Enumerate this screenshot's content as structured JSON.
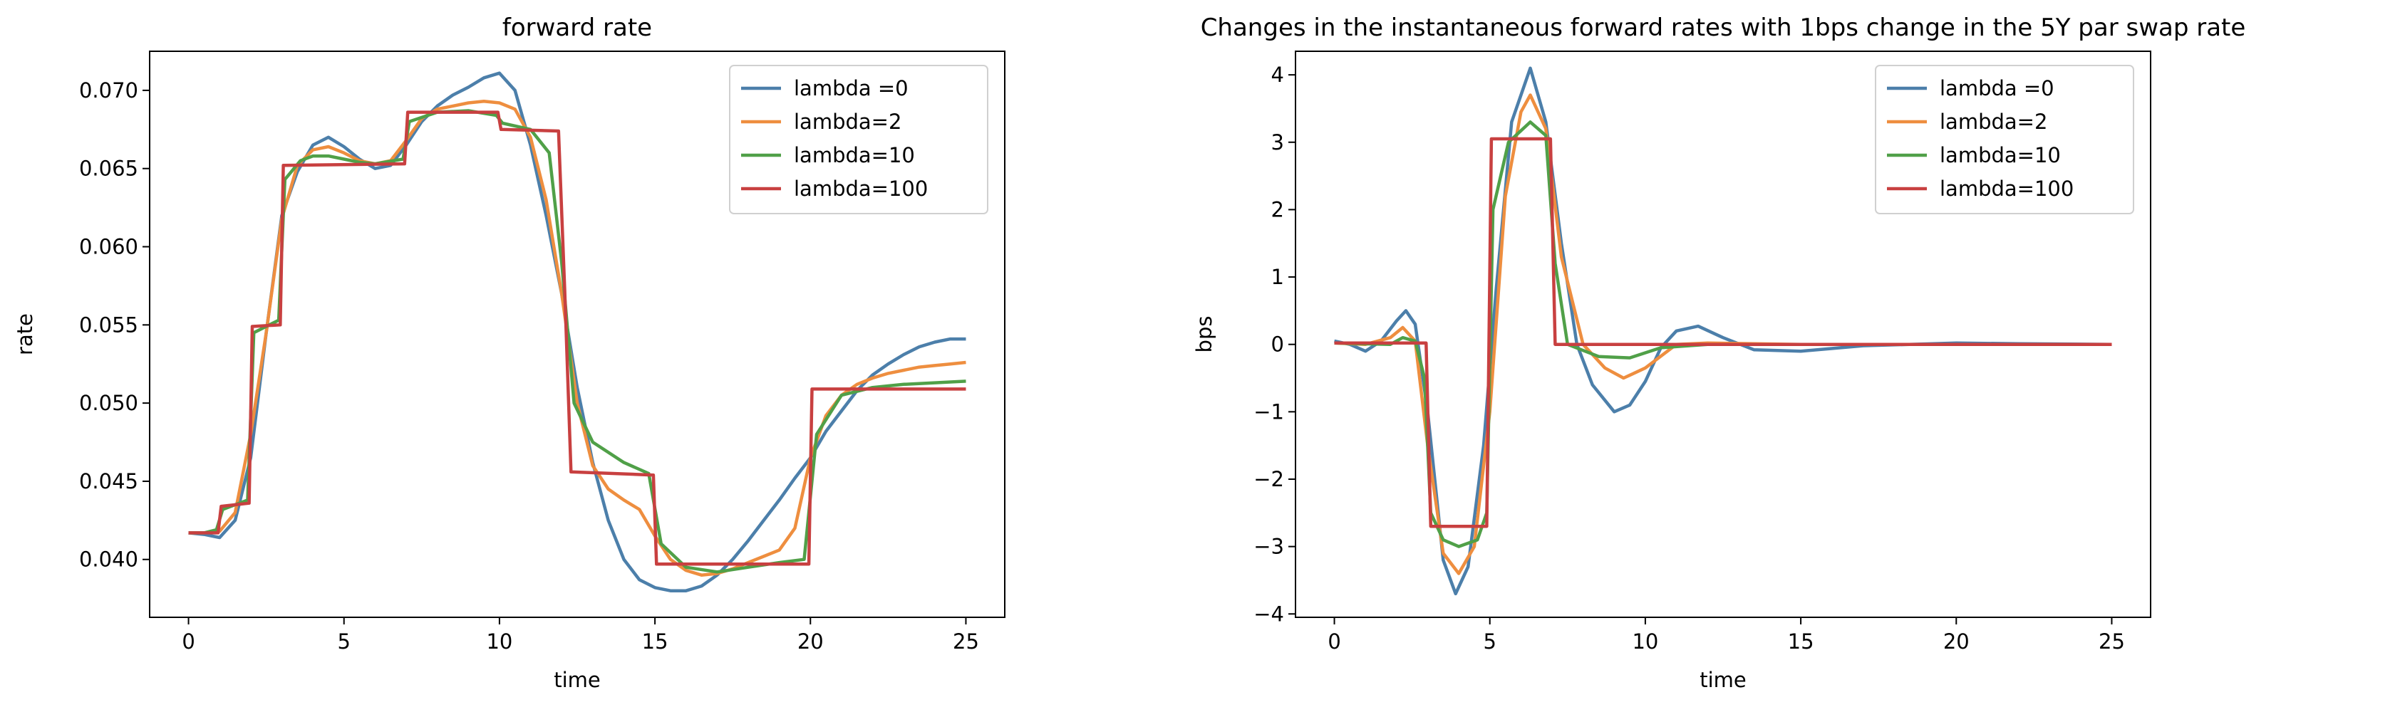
{
  "chart_data": [
    {
      "type": "line",
      "title": "forward rate",
      "xlabel": "time",
      "ylabel": "rate",
      "xlim": [
        -1.25,
        26.25
      ],
      "ylim": [
        0.0363,
        0.0725
      ],
      "xticks": [
        0,
        5,
        10,
        15,
        20,
        25
      ],
      "yticks": [
        0.04,
        0.045,
        0.05,
        0.055,
        0.06,
        0.065,
        0.07
      ],
      "ytick_decimals": 3,
      "legend": "top-right",
      "grid": false,
      "series": [
        {
          "name": "lambda =0",
          "color": "#4c7faa",
          "points": [
            [
              0,
              0.0417
            ],
            [
              0.5,
              0.0416
            ],
            [
              1,
              0.0414
            ],
            [
              1.5,
              0.0425
            ],
            [
              2,
              0.0465
            ],
            [
              2.5,
              0.0545
            ],
            [
              3,
              0.062
            ],
            [
              3.5,
              0.0648
            ],
            [
              4,
              0.0665
            ],
            [
              4.5,
              0.067
            ],
            [
              5,
              0.0664
            ],
            [
              5.5,
              0.0656
            ],
            [
              6,
              0.065
            ],
            [
              6.5,
              0.0652
            ],
            [
              7,
              0.0665
            ],
            [
              7.5,
              0.068
            ],
            [
              8,
              0.069
            ],
            [
              8.5,
              0.0697
            ],
            [
              9,
              0.0702
            ],
            [
              9.5,
              0.0708
            ],
            [
              10,
              0.0711
            ],
            [
              10.5,
              0.07
            ],
            [
              11,
              0.0665
            ],
            [
              11.5,
              0.062
            ],
            [
              12,
              0.057
            ],
            [
              12.5,
              0.051
            ],
            [
              13,
              0.0462
            ],
            [
              13.5,
              0.0425
            ],
            [
              14,
              0.04
            ],
            [
              14.5,
              0.0387
            ],
            [
              15,
              0.0382
            ],
            [
              15.5,
              0.038
            ],
            [
              16,
              0.038
            ],
            [
              16.5,
              0.0383
            ],
            [
              17,
              0.039
            ],
            [
              17.5,
              0.04
            ],
            [
              18,
              0.0412
            ],
            [
              18.5,
              0.0425
            ],
            [
              19,
              0.0438
            ],
            [
              19.5,
              0.0452
            ],
            [
              20,
              0.0465
            ],
            [
              20.5,
              0.0482
            ],
            [
              21,
              0.0495
            ],
            [
              21.5,
              0.0508
            ],
            [
              22,
              0.0518
            ],
            [
              22.5,
              0.0525
            ],
            [
              23,
              0.0531
            ],
            [
              23.5,
              0.0536
            ],
            [
              24,
              0.0539
            ],
            [
              24.5,
              0.0541
            ],
            [
              25,
              0.0541
            ]
          ]
        },
        {
          "name": "lambda=2",
          "color": "#ee8e3f",
          "points": [
            [
              0,
              0.0417
            ],
            [
              0.5,
              0.0417
            ],
            [
              1,
              0.0418
            ],
            [
              1.5,
              0.043
            ],
            [
              2,
              0.048
            ],
            [
              2.5,
              0.0545
            ],
            [
              3,
              0.0618
            ],
            [
              3.5,
              0.0652
            ],
            [
              4,
              0.0662
            ],
            [
              4.5,
              0.0664
            ],
            [
              5,
              0.066
            ],
            [
              5.5,
              0.0655
            ],
            [
              6,
              0.0653
            ],
            [
              6.5,
              0.0655
            ],
            [
              7,
              0.0668
            ],
            [
              7.5,
              0.0682
            ],
            [
              8,
              0.0688
            ],
            [
              8.5,
              0.069
            ],
            [
              9,
              0.0692
            ],
            [
              9.5,
              0.0693
            ],
            [
              10,
              0.0692
            ],
            [
              10.5,
              0.0688
            ],
            [
              11,
              0.067
            ],
            [
              11.5,
              0.063
            ],
            [
              12,
              0.057
            ],
            [
              12.5,
              0.05
            ],
            [
              13,
              0.046
            ],
            [
              13.5,
              0.0445
            ],
            [
              14,
              0.0438
            ],
            [
              14.5,
              0.0432
            ],
            [
              15,
              0.0415
            ],
            [
              15.5,
              0.04
            ],
            [
              16,
              0.0393
            ],
            [
              16.5,
              0.039
            ],
            [
              17,
              0.0391
            ],
            [
              17.5,
              0.0394
            ],
            [
              18,
              0.0398
            ],
            [
              18.5,
              0.0402
            ],
            [
              19,
              0.0406
            ],
            [
              19.5,
              0.042
            ],
            [
              20,
              0.0465
            ],
            [
              20.5,
              0.0492
            ],
            [
              21,
              0.0505
            ],
            [
              21.5,
              0.0512
            ],
            [
              22,
              0.0516
            ],
            [
              22.5,
              0.0519
            ],
            [
              23,
              0.0521
            ],
            [
              23.5,
              0.0523
            ],
            [
              24,
              0.0524
            ],
            [
              24.5,
              0.0525
            ],
            [
              25,
              0.0526
            ]
          ]
        },
        {
          "name": "lambda=10",
          "color": "#50a048",
          "points": [
            [
              0,
              0.0417
            ],
            [
              0.5,
              0.0417
            ],
            [
              0.9,
              0.0419
            ],
            [
              1.1,
              0.0432
            ],
            [
              1.9,
              0.0438
            ],
            [
              2.1,
              0.0545
            ],
            [
              2.9,
              0.0553
            ],
            [
              3.1,
              0.0643
            ],
            [
              3.6,
              0.0655
            ],
            [
              4,
              0.0658
            ],
            [
              4.5,
              0.0658
            ],
            [
              5,
              0.0656
            ],
            [
              5.5,
              0.0654
            ],
            [
              6,
              0.0653
            ],
            [
              6.9,
              0.0656
            ],
            [
              7.1,
              0.068
            ],
            [
              8,
              0.0686
            ],
            [
              9,
              0.0687
            ],
            [
              9.9,
              0.0684
            ],
            [
              10.1,
              0.0679
            ],
            [
              11,
              0.0675
            ],
            [
              11.6,
              0.066
            ],
            [
              12,
              0.059
            ],
            [
              12.4,
              0.05
            ],
            [
              13,
              0.0475
            ],
            [
              14,
              0.0462
            ],
            [
              14.8,
              0.0455
            ],
            [
              15.2,
              0.041
            ],
            [
              16,
              0.0395
            ],
            [
              17,
              0.0392
            ],
            [
              18,
              0.0395
            ],
            [
              19,
              0.0398
            ],
            [
              19.8,
              0.04
            ],
            [
              20.2,
              0.048
            ],
            [
              21,
              0.0505
            ],
            [
              22,
              0.051
            ],
            [
              23,
              0.0512
            ],
            [
              24,
              0.0513
            ],
            [
              25,
              0.0514
            ]
          ]
        },
        {
          "name": "lambda=100",
          "color": "#c84040",
          "points": [
            [
              0,
              0.0417
            ],
            [
              0.95,
              0.0417
            ],
            [
              1.05,
              0.0434
            ],
            [
              1.95,
              0.0436
            ],
            [
              2.05,
              0.0549
            ],
            [
              2.95,
              0.055
            ],
            [
              3.05,
              0.0652
            ],
            [
              6.95,
              0.0653
            ],
            [
              7.05,
              0.0686
            ],
            [
              9.95,
              0.0686
            ],
            [
              10.05,
              0.0675
            ],
            [
              11.9,
              0.0674
            ],
            [
              12.1,
              0.0572
            ],
            [
              12.3,
              0.0456
            ],
            [
              14.95,
              0.0454
            ],
            [
              15.05,
              0.0397
            ],
            [
              19.95,
              0.0397
            ],
            [
              20.05,
              0.0509
            ],
            [
              25,
              0.0509
            ]
          ]
        }
      ]
    },
    {
      "type": "line",
      "title": "Changes in the instantaneous forward rates with 1bps change in the 5Y par swap rate",
      "xlabel": "time",
      "ylabel": "bps",
      "xlim": [
        -1.25,
        26.25
      ],
      "ylim": [
        -4.05,
        4.35
      ],
      "xticks": [
        0,
        5,
        10,
        15,
        20,
        25
      ],
      "yticks": [
        -4,
        -3,
        -2,
        -1,
        0,
        1,
        2,
        3,
        4
      ],
      "ytick_decimals": 0,
      "legend": "top-right",
      "grid": false,
      "series": [
        {
          "name": "lambda =0",
          "color": "#4c7faa",
          "points": [
            [
              0,
              0.05
            ],
            [
              0.5,
              0
            ],
            [
              1,
              -0.1
            ],
            [
              1.5,
              0.05
            ],
            [
              2,
              0.35
            ],
            [
              2.3,
              0.5
            ],
            [
              2.6,
              0.3
            ],
            [
              3,
              -1
            ],
            [
              3.5,
              -3.2
            ],
            [
              3.9,
              -3.7
            ],
            [
              4.3,
              -3.3
            ],
            [
              4.8,
              -1.5
            ],
            [
              5.2,
              0.8
            ],
            [
              5.7,
              3.3
            ],
            [
              6.3,
              4.1
            ],
            [
              6.8,
              3.3
            ],
            [
              7.3,
              1.5
            ],
            [
              7.8,
              0
            ],
            [
              8.3,
              -0.6
            ],
            [
              9,
              -1
            ],
            [
              9.5,
              -0.9
            ],
            [
              10,
              -0.55
            ],
            [
              10.5,
              -0.05
            ],
            [
              11,
              0.2
            ],
            [
              11.7,
              0.27
            ],
            [
              12.5,
              0.1
            ],
            [
              13.5,
              -0.08
            ],
            [
              15,
              -0.1
            ],
            [
              17,
              -0.02
            ],
            [
              20,
              0.02
            ],
            [
              22,
              0.01
            ],
            [
              25,
              0
            ]
          ]
        },
        {
          "name": "lambda=2",
          "color": "#ee8e3f",
          "points": [
            [
              0,
              0.02
            ],
            [
              1,
              0
            ],
            [
              1.8,
              0.1
            ],
            [
              2.2,
              0.25
            ],
            [
              2.6,
              0.05
            ],
            [
              3,
              -1.5
            ],
            [
              3.5,
              -3.1
            ],
            [
              4,
              -3.4
            ],
            [
              4.5,
              -3
            ],
            [
              5,
              -1
            ],
            [
              5.5,
              2.2
            ],
            [
              6,
              3.45
            ],
            [
              6.3,
              3.7
            ],
            [
              6.8,
              3.2
            ],
            [
              7.3,
              1.3
            ],
            [
              8,
              0
            ],
            [
              8.7,
              -0.35
            ],
            [
              9.3,
              -0.5
            ],
            [
              10,
              -0.35
            ],
            [
              11,
              0
            ],
            [
              12,
              0.02
            ],
            [
              15,
              0
            ],
            [
              25,
              0
            ]
          ]
        },
        {
          "name": "lambda=10",
          "color": "#50a048",
          "points": [
            [
              0,
              0.02
            ],
            [
              1.8,
              0
            ],
            [
              2.2,
              0.1
            ],
            [
              2.6,
              0.05
            ],
            [
              2.9,
              -0.5
            ],
            [
              3.1,
              -2.5
            ],
            [
              3.5,
              -2.9
            ],
            [
              4,
              -3
            ],
            [
              4.6,
              -2.9
            ],
            [
              4.9,
              -2.5
            ],
            [
              5.1,
              2
            ],
            [
              5.6,
              3
            ],
            [
              6.3,
              3.3
            ],
            [
              6.8,
              3.1
            ],
            [
              7.1,
              1.2
            ],
            [
              7.5,
              0
            ],
            [
              8.5,
              -0.18
            ],
            [
              9.5,
              -0.2
            ],
            [
              10.5,
              -0.05
            ],
            [
              12,
              0
            ],
            [
              25,
              0
            ]
          ]
        },
        {
          "name": "lambda=100",
          "color": "#c84040",
          "points": [
            [
              0,
              0.02
            ],
            [
              2.95,
              0.02
            ],
            [
              3.1,
              -2.7
            ],
            [
              4.9,
              -2.7
            ],
            [
              5.05,
              3.05
            ],
            [
              6.95,
              3.05
            ],
            [
              7.1,
              0
            ],
            [
              25,
              0
            ]
          ]
        }
      ]
    }
  ]
}
